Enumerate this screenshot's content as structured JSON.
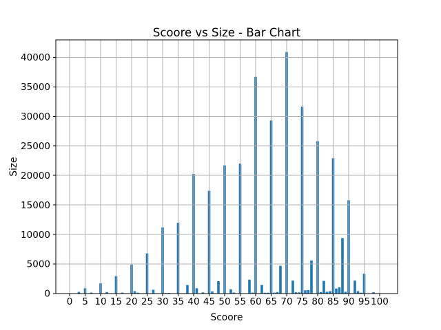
{
  "figure": {
    "background": "#ffffff"
  },
  "chart_data": {
    "type": "bar",
    "title": "Scoore vs Size - Bar Chart",
    "xlabel": "Scoore",
    "ylabel": "Size",
    "bar_color": "#1f77b4",
    "grid_color": "#b0b0b0",
    "axis_color": "#000000",
    "grid": true,
    "grid_above_bars": true,
    "legend": "none",
    "bar_width_units": 0.8,
    "xlim": [
      -4.44,
      105.78
    ],
    "ylim": [
      0,
      42950
    ],
    "x_ticks": [
      0,
      5,
      10,
      15,
      20,
      25,
      30,
      35,
      40,
      45,
      50,
      55,
      60,
      65,
      70,
      75,
      80,
      85,
      90,
      95,
      100
    ],
    "y_ticks": [
      0,
      5000,
      10000,
      15000,
      20000,
      25000,
      30000,
      35000,
      40000
    ],
    "x": [
      3,
      5,
      7,
      10,
      12,
      15,
      17,
      20,
      21,
      22,
      25,
      27,
      30,
      31,
      32,
      35,
      38,
      40,
      41,
      43,
      45,
      46,
      48,
      50,
      52,
      53,
      55,
      58,
      59,
      60,
      62,
      63,
      64,
      65,
      66,
      67,
      68,
      70,
      72,
      73,
      74,
      75,
      76,
      77,
      78,
      80,
      81,
      82,
      83,
      84,
      85,
      86,
      87,
      88,
      89,
      90,
      92,
      93,
      94,
      95,
      98
    ],
    "values": [
      280,
      900,
      170,
      1730,
      250,
      2950,
      160,
      4900,
      400,
      150,
      6800,
      650,
      11200,
      100,
      120,
      12000,
      1450,
      20250,
      900,
      200,
      17400,
      370,
      2100,
      21700,
      700,
      180,
      22000,
      2350,
      170,
      36700,
      1450,
      150,
      150,
      29300,
      150,
      250,
      4700,
      40900,
      2200,
      220,
      200,
      31650,
      550,
      600,
      5600,
      25800,
      250,
      2150,
      300,
      400,
      22900,
      850,
      1050,
      9400,
      300,
      15800,
      2200,
      400,
      150,
      3350,
      220
    ]
  }
}
